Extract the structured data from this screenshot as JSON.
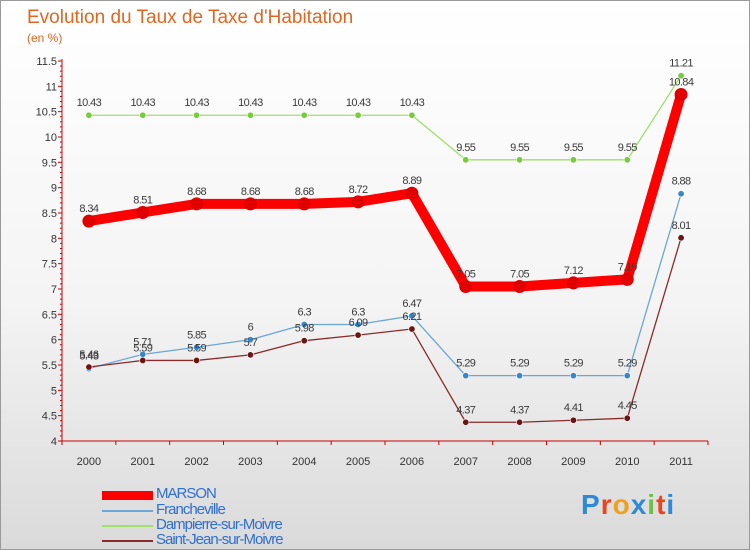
{
  "title": "Evolution du Taux de Taxe d'Habitation",
  "subtitle": "(en %)",
  "logo": "Proxiti",
  "colors": {
    "title": "#e2661f"
  },
  "chart_data": {
    "type": "line",
    "title": "Evolution du Taux de Taxe d'Habitation",
    "ylabel": "(en %)",
    "xlabel": "",
    "ylim": [
      4,
      11.5
    ],
    "yticks": [
      "4",
      "4.5",
      "5",
      "5.5",
      "6",
      "6.5",
      "7",
      "7.5",
      "8",
      "8.5",
      "9",
      "9.5",
      "10",
      "10.5",
      "11",
      "11.5"
    ],
    "x": [
      "2000",
      "2001",
      "2002",
      "2003",
      "2004",
      "2005",
      "2006",
      "2007",
      "2008",
      "2009",
      "2010",
      "2011"
    ],
    "grid": false,
    "legend": "bottom-left",
    "series": [
      {
        "name": "MARSON",
        "color": "#ff0000",
        "pointColor": "#e00000",
        "width": 10,
        "values": [
          8.34,
          8.51,
          8.68,
          8.68,
          8.68,
          8.72,
          8.89,
          7.05,
          7.05,
          7.12,
          7.19,
          10.84
        ],
        "labels": [
          "8.34",
          "8.51",
          "8.68",
          "8.68",
          "8.68",
          "8.72",
          "8.89",
          "7.05",
          "7.05",
          "7.12",
          "7.19",
          "10.84"
        ]
      },
      {
        "name": "Francheville",
        "color": "#6ba6d6",
        "pointColor": "#3a86c8",
        "width": 1.3,
        "values": [
          5.43,
          5.71,
          5.85,
          6,
          6.3,
          6.3,
          6.47,
          5.29,
          5.29,
          5.29,
          5.29,
          8.88
        ],
        "labels": [
          "5.43",
          "5.71",
          "5.85",
          "6",
          "6.3",
          "6.3",
          "6.47",
          "5.29",
          "5.29",
          "5.29",
          "5.29",
          "8.88"
        ]
      },
      {
        "name": "Dampierre-sur-Moivre",
        "color": "#9ee06a",
        "pointColor": "#76cc3a",
        "width": 1.3,
        "values": [
          10.43,
          10.43,
          10.43,
          10.43,
          10.43,
          10.43,
          10.43,
          9.55,
          9.55,
          9.55,
          9.55,
          11.21
        ],
        "labels": [
          "10.43",
          "10.43",
          "10.43",
          "10.43",
          "10.43",
          "10.43",
          "10.43",
          "9.55",
          "9.55",
          "9.55",
          "9.55",
          "11.21"
        ]
      },
      {
        "name": "Saint-Jean-sur-Moivre",
        "color": "#8a2b2b",
        "pointColor": "#6b1414",
        "width": 1.3,
        "values": [
          5.46,
          5.59,
          5.59,
          5.7,
          5.98,
          6.09,
          6.21,
          4.37,
          4.37,
          4.41,
          4.45,
          8.01
        ],
        "labels": [
          "5.46",
          "5.59",
          "5.59",
          "5.7",
          "5.98",
          "6.09",
          "6.21",
          "4.37",
          "4.37",
          "4.41",
          "4.45",
          "8.01"
        ]
      }
    ]
  }
}
